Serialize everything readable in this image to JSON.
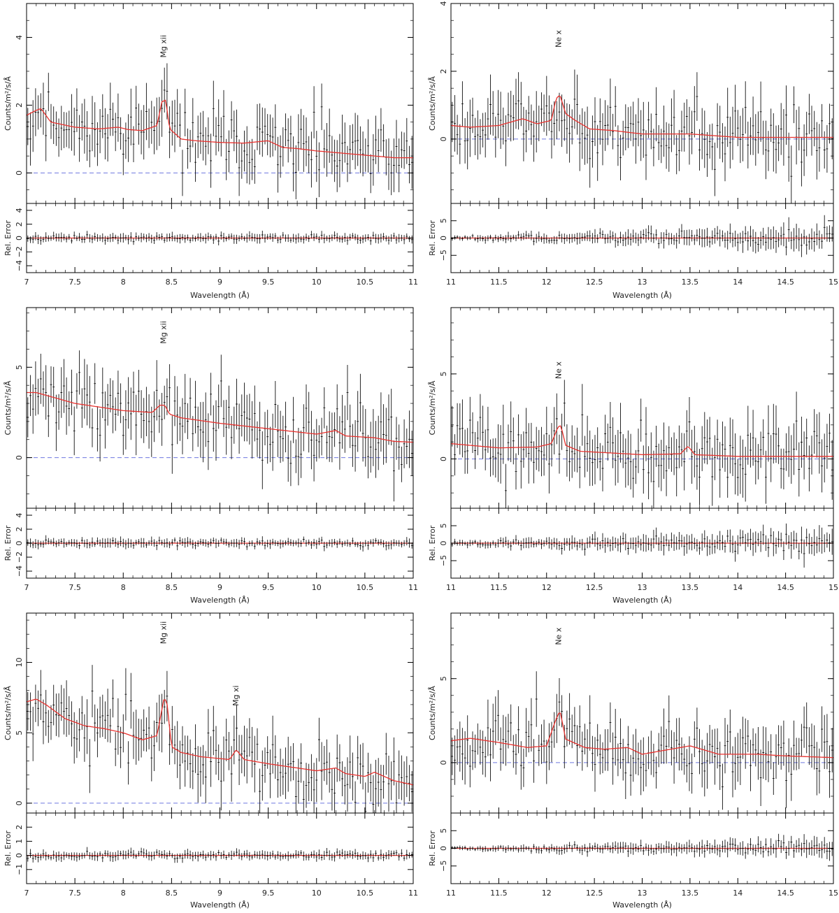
{
  "colors": {
    "model": "#e8322f",
    "zero": "#6f78e0",
    "data": "#111111",
    "frame": "#000000"
  },
  "chart_data": [
    {
      "type": "line",
      "main_ylabel": "Counts/m²/s/Å",
      "resid_ylabel": "Rel. Error",
      "xlabel": "Wavelength (Å)",
      "xlim": [
        7,
        11
      ],
      "xticks": [
        "7",
        "7.5",
        "8",
        "8.5",
        "9",
        "9.5",
        "10",
        "10.5",
        "11"
      ],
      "main_ylim": [
        -0.9,
        5.0
      ],
      "main_yticks": [
        "0",
        "2",
        "4"
      ],
      "resid_ylim": [
        -5,
        5
      ],
      "resid_yticks": [
        "−4",
        "−2",
        "0",
        "2",
        "4"
      ],
      "data_seed": 11,
      "data_noise": 0.65,
      "resid_noise": 0.7,
      "lines": [
        {
          "text": "Mg xii",
          "x": 8.42,
          "y": 3.4
        }
      ],
      "model": {
        "x": [
          7.0,
          7.1,
          7.15,
          7.25,
          7.5,
          7.75,
          7.95,
          8.05,
          8.2,
          8.35,
          8.4,
          8.44,
          8.48,
          8.6,
          8.75,
          9.0,
          9.25,
          9.5,
          9.65,
          9.8,
          10.0,
          10.2,
          10.4,
          10.6,
          10.8,
          11.0
        ],
        "y": [
          1.7,
          1.85,
          1.9,
          1.5,
          1.35,
          1.3,
          1.35,
          1.28,
          1.25,
          1.4,
          2.1,
          2.15,
          1.3,
          1.0,
          0.95,
          0.9,
          0.88,
          0.95,
          0.75,
          0.72,
          0.65,
          0.6,
          0.55,
          0.5,
          0.45,
          0.45
        ]
      }
    },
    {
      "type": "line",
      "main_ylabel": "Counts/m²/s/Å",
      "resid_ylabel": "Rel. Error",
      "xlabel": "Wavelength (Å)",
      "xlim": [
        11,
        15
      ],
      "xticks": [
        "11",
        "11.5",
        "12",
        "12.5",
        "13",
        "13.5",
        "14",
        "14.5",
        "15"
      ],
      "main_ylim": [
        -1.9,
        4.0
      ],
      "main_yticks": [
        "0",
        "2",
        "4"
      ],
      "resid_ylim": [
        -10,
        10
      ],
      "resid_yticks": [
        "−5",
        "0",
        "5"
      ],
      "data_seed": 23,
      "data_noise": 0.7,
      "resid_noise": 2.4,
      "lines": [
        {
          "text": "Ne x",
          "x": 12.13,
          "y": 2.7
        }
      ],
      "model": {
        "x": [
          11.0,
          11.2,
          11.5,
          11.75,
          11.9,
          12.05,
          12.1,
          12.14,
          12.2,
          12.3,
          12.45,
          12.7,
          13.0,
          13.5,
          14.0,
          14.5,
          15.0
        ],
        "y": [
          0.4,
          0.35,
          0.4,
          0.6,
          0.45,
          0.55,
          1.2,
          1.3,
          0.75,
          0.55,
          0.3,
          0.25,
          0.15,
          0.15,
          0.05,
          0.05,
          0.05
        ]
      }
    },
    {
      "type": "line",
      "main_ylabel": "Counts/m²/s/Å",
      "resid_ylabel": "Rel. Error",
      "xlabel": "Wavelength (Å)",
      "xlim": [
        7,
        11
      ],
      "xticks": [
        "7",
        "7.5",
        "8",
        "8.5",
        "9",
        "9.5",
        "10",
        "10.5",
        "11"
      ],
      "main_ylim": [
        -2.8,
        8.3
      ],
      "main_yticks": [
        "0",
        "5"
      ],
      "resid_ylim": [
        -5,
        5
      ],
      "resid_yticks": [
        "−4",
        "−2",
        "0",
        "2",
        "4"
      ],
      "data_seed": 37,
      "data_noise": 1.3,
      "resid_noise": 0.7,
      "lines": [
        {
          "text": "Mg xii",
          "x": 8.42,
          "y": 6.3
        }
      ],
      "model": {
        "x": [
          7.0,
          7.1,
          7.3,
          7.5,
          7.75,
          8.0,
          8.3,
          8.38,
          8.43,
          8.48,
          8.6,
          9.0,
          9.5,
          10.0,
          10.2,
          10.3,
          10.6,
          10.8,
          11.0
        ],
        "y": [
          3.6,
          3.6,
          3.3,
          3.0,
          2.8,
          2.6,
          2.5,
          2.9,
          2.9,
          2.4,
          2.2,
          1.9,
          1.6,
          1.3,
          1.5,
          1.2,
          1.1,
          0.9,
          0.85
        ]
      }
    },
    {
      "type": "line",
      "main_ylabel": "Counts/m²/s/Å",
      "resid_ylabel": "Rel. Error",
      "xlabel": "Wavelength (Å)",
      "xlim": [
        11,
        15
      ],
      "xticks": [
        "11",
        "11.5",
        "12",
        "12.5",
        "13",
        "13.5",
        "14",
        "14.5",
        "15"
      ],
      "main_ylim": [
        -2.9,
        8.9
      ],
      "main_yticks": [
        "0",
        "5"
      ],
      "resid_ylim": [
        -10,
        10
      ],
      "resid_yticks": [
        "−5",
        "0",
        "5"
      ],
      "data_seed": 41,
      "data_noise": 1.4,
      "resid_noise": 2.6,
      "lines": [
        {
          "text": "Ne x",
          "x": 12.13,
          "y": 4.7
        }
      ],
      "model": {
        "x": [
          11.0,
          11.2,
          11.5,
          11.9,
          12.05,
          12.12,
          12.15,
          12.2,
          12.35,
          13.0,
          13.4,
          13.48,
          13.55,
          14.0,
          15.0
        ],
        "y": [
          0.9,
          0.8,
          0.65,
          0.7,
          0.9,
          1.9,
          1.95,
          0.8,
          0.45,
          0.25,
          0.3,
          0.75,
          0.25,
          0.15,
          0.15
        ]
      }
    },
    {
      "type": "line",
      "main_ylabel": "Counts/m²/s/Å",
      "resid_ylabel": "Rel. Error",
      "xlabel": "Wavelength (Å)",
      "xlim": [
        7,
        11
      ],
      "xticks": [
        "7",
        "7.5",
        "8",
        "8.5",
        "9",
        "9.5",
        "10",
        "10.5",
        "11"
      ],
      "main_ylim": [
        -0.7,
        13.5
      ],
      "main_yticks": [
        "0",
        "5",
        "10"
      ],
      "resid_ylim": [
        -2,
        3
      ],
      "resid_yticks": [
        "−1",
        "0",
        "1",
        "2"
      ],
      "data_seed": 53,
      "data_noise": 1.6,
      "resid_noise": 0.35,
      "lines": [
        {
          "text": "Mg xii",
          "x": 8.42,
          "y": 11.3
        },
        {
          "text": "Mg xi",
          "x": 9.17,
          "y": 6.9
        }
      ],
      "model": {
        "x": [
          7.0,
          7.1,
          7.2,
          7.4,
          7.6,
          7.8,
          8.0,
          8.2,
          8.35,
          8.42,
          8.45,
          8.5,
          8.6,
          8.8,
          9.1,
          9.17,
          9.25,
          9.5,
          9.8,
          10.0,
          10.2,
          10.3,
          10.5,
          10.6,
          10.8,
          11.0
        ],
        "y": [
          7.2,
          7.4,
          7.0,
          6.0,
          5.5,
          5.3,
          5.0,
          4.5,
          4.8,
          7.4,
          7.3,
          4.0,
          3.6,
          3.3,
          3.1,
          3.8,
          3.1,
          2.8,
          2.5,
          2.3,
          2.5,
          2.1,
          1.9,
          2.2,
          1.6,
          1.3
        ]
      }
    },
    {
      "type": "line",
      "main_ylabel": "Counts/m²/s/Å",
      "resid_ylabel": "Rel. Error",
      "xlabel": "Wavelength (Å)",
      "xlim": [
        11,
        15
      ],
      "xticks": [
        "11",
        "11.5",
        "12",
        "12.5",
        "13",
        "13.5",
        "14",
        "14.5",
        "15"
      ],
      "main_ylim": [
        -3.0,
        8.9
      ],
      "main_yticks": [
        "0",
        "5"
      ],
      "resid_ylim": [
        -10,
        10
      ],
      "resid_yticks": [
        "−5",
        "0",
        "5"
      ],
      "data_seed": 67,
      "data_noise": 1.3,
      "resid_noise": 1.8,
      "lines": [
        {
          "text": "Ne x",
          "x": 12.13,
          "y": 7.0
        }
      ],
      "model": {
        "x": [
          11.0,
          11.2,
          11.5,
          11.8,
          12.0,
          12.1,
          12.14,
          12.2,
          12.4,
          12.6,
          12.85,
          13.0,
          13.5,
          13.8,
          14.2,
          14.5,
          15.0
        ],
        "y": [
          1.3,
          1.45,
          1.2,
          0.9,
          1.0,
          2.6,
          3.1,
          1.4,
          0.9,
          0.8,
          0.9,
          0.5,
          1.0,
          0.5,
          0.5,
          0.4,
          0.3
        ]
      }
    }
  ]
}
